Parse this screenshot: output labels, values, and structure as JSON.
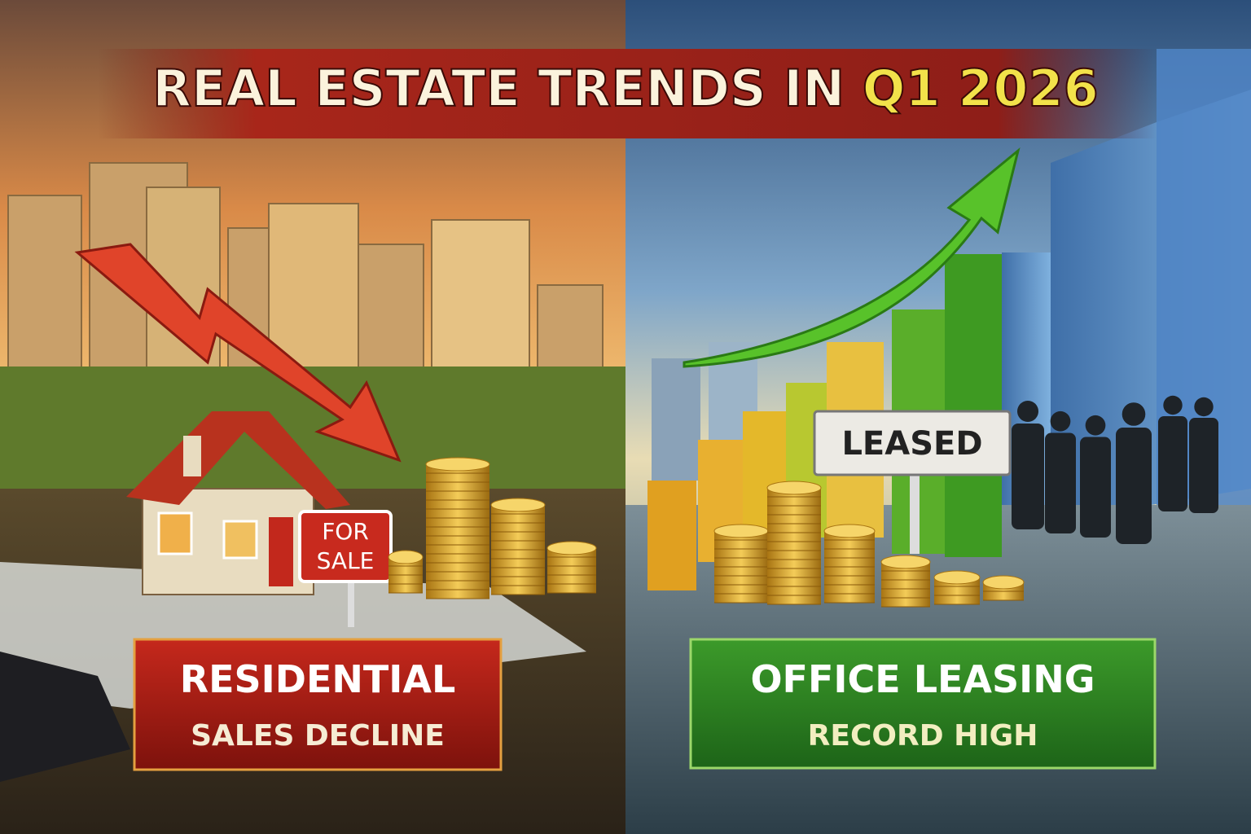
{
  "title": {
    "main": "REAL ESTATE TRENDS IN",
    "highlight": "Q1 2026"
  },
  "left": {
    "sign": [
      "FOR",
      "SALE"
    ],
    "label": {
      "line1": "RESIDENTIAL",
      "line2": "SALES DECLINE"
    }
  },
  "right": {
    "sign": "LEASED",
    "label": {
      "line1": "OFFICE LEASING",
      "line2": "RECORD HIGH"
    }
  }
}
